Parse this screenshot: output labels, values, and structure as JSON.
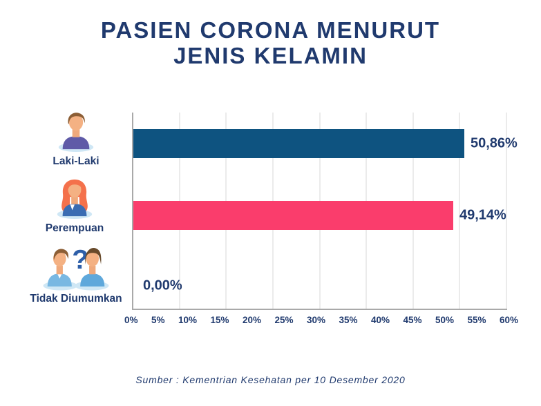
{
  "title": {
    "line1": "PASIEN CORONA MENURUT",
    "line2": "JENIS KELAMIN"
  },
  "chart_data": {
    "type": "bar",
    "orientation": "horizontal",
    "title": "PASIEN CORONA MENURUT JENIS KELAMIN",
    "categories": [
      "Laki-Laki",
      "Perempuan",
      "Tidak Diumumkan"
    ],
    "values": [
      50.86,
      49.14,
      0
    ],
    "value_labels": [
      "50,86%",
      "49,14%",
      "0,00%"
    ],
    "bar_colors": [
      "#0E5380",
      "#FA3D6C",
      "transparent"
    ],
    "x_ticks": [
      "0%",
      "5%",
      "10%",
      "15%",
      "20%",
      "25%",
      "30%",
      "35%",
      "40%",
      "45%",
      "50%",
      "55%",
      "60%"
    ],
    "xlim": [
      0,
      60
    ],
    "grid": "vertical light-gray gridlines",
    "legend": "none"
  },
  "rows": [
    {
      "label": "Laki-Laki",
      "value_label": "50,86%",
      "icon": "male-person-icon"
    },
    {
      "label": "Perempuan",
      "value_label": "49,14%",
      "icon": "female-person-icon"
    },
    {
      "label": "Tidak Diumumkan",
      "value_label": "0,00%",
      "icon": "unknown-gender-icon"
    }
  ],
  "source": "Sumber : Kementrian Kesehatan per 10 Desember 2020",
  "colors": {
    "text_navy": "#203A6E",
    "bar_blue": "#0E5380",
    "bar_pink": "#FA3D6C",
    "gridline": "#EBEBEB",
    "axis": "#A9A9A9",
    "icon_base": "#CFE7F5",
    "skin": "#F4B183",
    "male_shirt": "#5F5AA7",
    "male_hair": "#8C5E35",
    "female_hair": "#F4714B",
    "female_shirt": "#3A6CB2",
    "unknown_left_shirt": "#79B8E2",
    "unknown_right_shirt": "#5FA8DB",
    "unknown_right_hair": "#684A2B",
    "question_mark": "#2D5EA8"
  }
}
